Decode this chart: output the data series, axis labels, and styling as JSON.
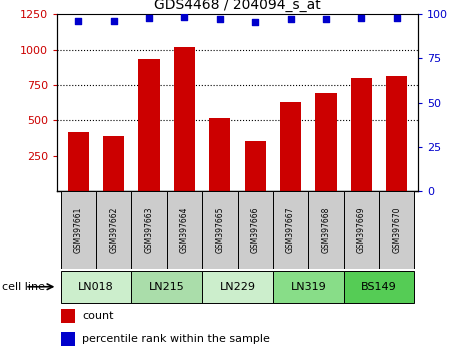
{
  "title": "GDS4468 / 204094_s_at",
  "samples": [
    "GSM397661",
    "GSM397662",
    "GSM397663",
    "GSM397664",
    "GSM397665",
    "GSM397666",
    "GSM397667",
    "GSM397668",
    "GSM397669",
    "GSM397670"
  ],
  "count_values": [
    420,
    390,
    930,
    1020,
    520,
    355,
    630,
    695,
    800,
    810
  ],
  "percentile_values": [
    96,
    96,
    98,
    98.5,
    97,
    95.5,
    97,
    97.5,
    98,
    98
  ],
  "cell_lines": [
    {
      "label": "LN018",
      "start": 0,
      "end": 2,
      "color": "#cceecc"
    },
    {
      "label": "LN215",
      "start": 2,
      "end": 4,
      "color": "#aaddaa"
    },
    {
      "label": "LN229",
      "start": 4,
      "end": 6,
      "color": "#cceecc"
    },
    {
      "label": "LN319",
      "start": 6,
      "end": 8,
      "color": "#88dd88"
    },
    {
      "label": "BS149",
      "start": 8,
      "end": 10,
      "color": "#55cc55"
    }
  ],
  "bar_color": "#cc0000",
  "scatter_color": "#0000cc",
  "ylim_left": [
    0,
    1250
  ],
  "ylim_right": [
    0,
    100
  ],
  "yticks_left": [
    250,
    500,
    750,
    1000,
    1250
  ],
  "yticks_right": [
    0,
    25,
    50,
    75,
    100
  ],
  "grid_values": [
    500,
    750,
    1000
  ],
  "sample_box_color": "#cccccc",
  "cell_line_label": "cell line",
  "legend_count_label": "count",
  "legend_pct_label": "percentile rank within the sample",
  "bg_color": "#ffffff"
}
